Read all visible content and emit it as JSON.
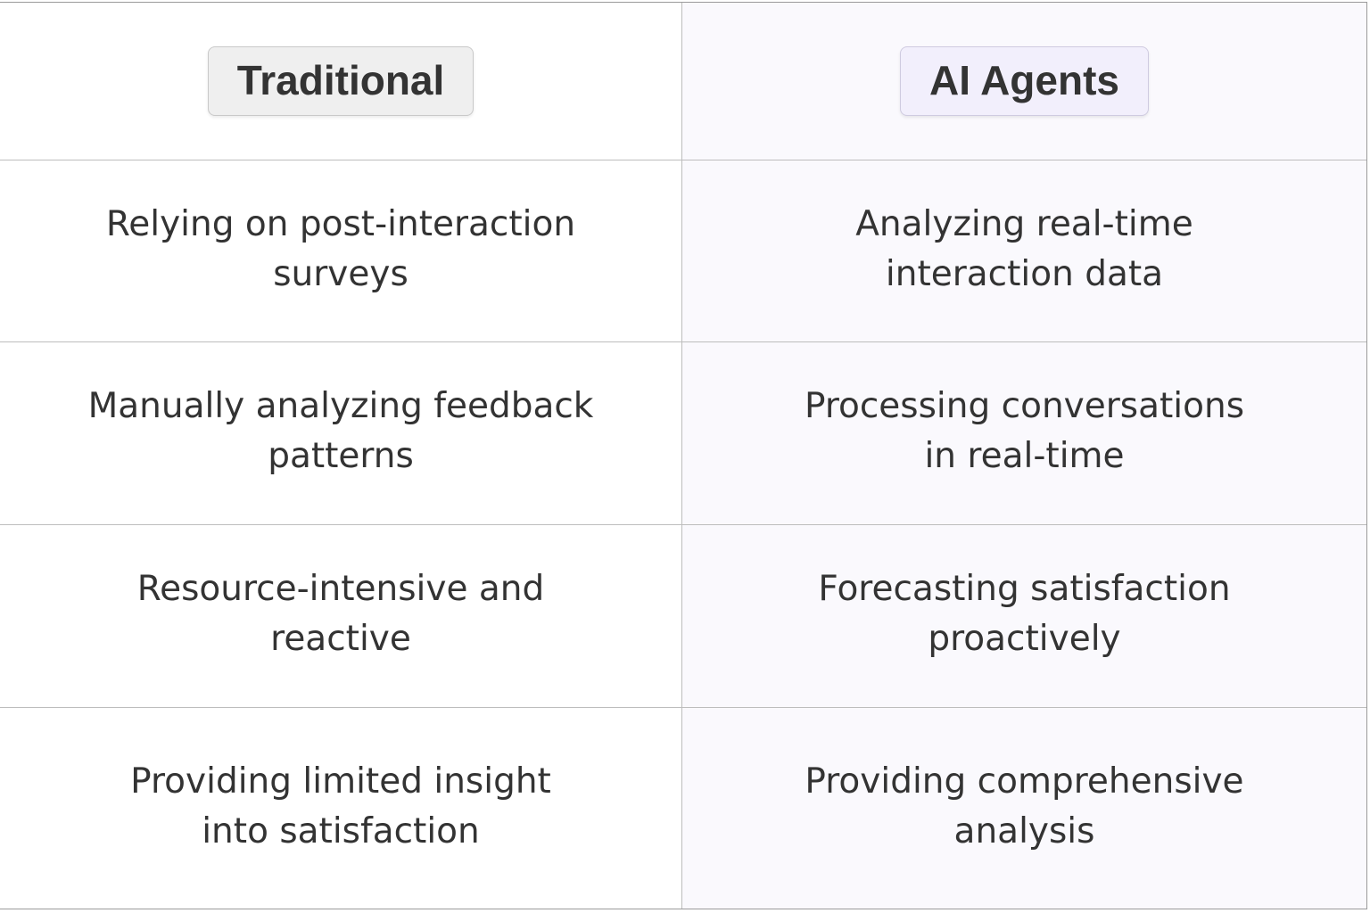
{
  "headers": {
    "traditional": "Traditional",
    "ai_agents": "AI Agents"
  },
  "rows": [
    {
      "traditional": "Relying on post-interaction surveys",
      "ai_agents": "Analyzing real-time interaction data"
    },
    {
      "traditional": "Manually analyzing feedback patterns",
      "ai_agents": "Processing conversations in real-time"
    },
    {
      "traditional": "Resource-intensive and reactive",
      "ai_agents": "Forecasting satisfaction proactively"
    },
    {
      "traditional": "Providing limited insight into satisfaction",
      "ai_agents": "Providing comprehensive analysis"
    }
  ],
  "colors": {
    "traditional_header_bg": "#efefef",
    "ai_header_bg": "#f2effc",
    "ai_column_bg": "#faf9fd",
    "text": "#333333"
  }
}
